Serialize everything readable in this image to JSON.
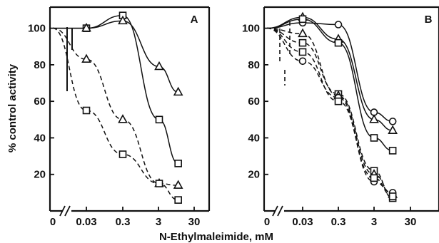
{
  "ylabel": "% control activity",
  "xlabel": "N-Ethylmaleimide, mM",
  "chart_data": [
    {
      "panel": "A",
      "type": "line",
      "x_scale": "log",
      "x_ticks": [
        "0",
        "0.03",
        "0.3",
        "3",
        "30"
      ],
      "y_ticks": [
        "20",
        "40",
        "60",
        "80",
        "100"
      ],
      "ylim": [
        0,
        110
      ],
      "series": [
        {
          "marker": "square",
          "line": "solid",
          "x": [
            0,
            0.03,
            0.3,
            3,
            10
          ],
          "y": [
            100,
            100,
            107,
            50,
            26
          ]
        },
        {
          "marker": "triangle",
          "line": "solid",
          "x": [
            0,
            0.03,
            0.3,
            3,
            10
          ],
          "y": [
            100,
            100,
            104,
            79,
            65
          ]
        },
        {
          "marker": "triangle",
          "line": "dashed",
          "x": [
            0,
            0.03,
            0.3,
            3,
            10
          ],
          "y": [
            100,
            83,
            50,
            15,
            14
          ]
        },
        {
          "marker": "square",
          "line": "dashed",
          "x": [
            0,
            0.03,
            0.3,
            3,
            10
          ],
          "y": [
            100,
            55,
            31,
            15,
            6
          ]
        }
      ]
    },
    {
      "panel": "B",
      "type": "line",
      "x_scale": "log",
      "x_ticks": [
        "0",
        "0.03",
        "0.3",
        "3",
        "30"
      ],
      "y_ticks": [
        "20",
        "40",
        "60",
        "80",
        "100"
      ],
      "ylim": [
        0,
        110
      ],
      "series": [
        {
          "marker": "circle",
          "line": "solid",
          "x": [
            0,
            0.03,
            0.3,
            3,
            10
          ],
          "y": [
            100,
            103,
            102,
            54,
            49
          ]
        },
        {
          "marker": "triangle",
          "line": "solid",
          "x": [
            0,
            0.03,
            0.3,
            3,
            10
          ],
          "y": [
            100,
            106,
            94,
            50,
            44
          ]
        },
        {
          "marker": "square",
          "line": "solid",
          "x": [
            0,
            0.03,
            0.3,
            3,
            10
          ],
          "y": [
            100,
            105,
            92,
            40,
            33
          ]
        },
        {
          "marker": "square",
          "line": "dashed",
          "x": [
            0,
            0.03,
            0.3,
            3,
            10
          ],
          "y": [
            100,
            92,
            64,
            22,
            7
          ]
        },
        {
          "marker": "triangle",
          "line": "dashed",
          "x": [
            0,
            0.03,
            0.3,
            3,
            10
          ],
          "y": [
            100,
            97,
            63,
            20,
            9
          ]
        },
        {
          "marker": "circle",
          "line": "dashed",
          "x": [
            0,
            0.03,
            0.3,
            3,
            10
          ],
          "y": [
            100,
            82,
            62,
            16,
            10
          ]
        },
        {
          "marker": "square",
          "line": "dashed",
          "x": [
            0,
            0.03,
            0.3,
            3,
            10
          ],
          "y": [
            100,
            87,
            60,
            18,
            8
          ]
        }
      ]
    }
  ]
}
